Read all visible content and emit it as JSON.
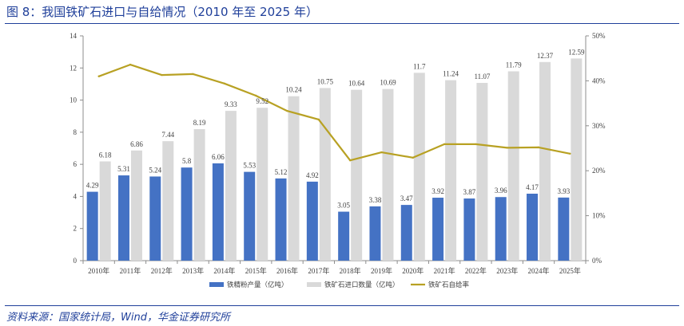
{
  "figure": {
    "title": "图 8：我国铁矿石进口与自给情况（2010 年至 2025 年）",
    "source": "资料来源：国家统计局，Wind，华金证券研究所"
  },
  "chart_data": {
    "type": "bar",
    "categories": [
      "2010年",
      "2011年",
      "2012年",
      "2013年",
      "2014年",
      "2015年",
      "2016年",
      "2017年",
      "2018年",
      "2019年",
      "2020年",
      "2021年",
      "2022年",
      "2023年",
      "2024年",
      "2025年"
    ],
    "series": [
      {
        "name": "铁精粉产量（亿吨）",
        "type": "bar",
        "axis": "left",
        "color": "#4472c4",
        "values": [
          4.29,
          5.31,
          5.24,
          5.8,
          6.06,
          5.53,
          5.12,
          4.92,
          3.05,
          3.38,
          3.47,
          3.92,
          3.87,
          3.96,
          4.17,
          3.93
        ]
      },
      {
        "name": "铁矿石进口数量（亿吨）",
        "type": "bar",
        "axis": "left",
        "color": "#d9d9d9",
        "values": [
          6.18,
          6.86,
          7.44,
          8.19,
          9.33,
          9.52,
          10.24,
          10.75,
          10.64,
          10.69,
          11.7,
          11.24,
          11.07,
          11.79,
          12.37,
          12.59
        ]
      },
      {
        "name": "铁矿石自给率",
        "type": "line",
        "axis": "right",
        "color": "#b8a123",
        "values": [
          41.0,
          43.6,
          41.3,
          41.5,
          39.4,
          36.7,
          33.3,
          31.4,
          22.3,
          24.1,
          22.9,
          25.9,
          25.9,
          25.1,
          25.2,
          23.8
        ]
      }
    ],
    "yAxisLeft": {
      "min": 0,
      "max": 14,
      "ticks": [
        "0",
        "2",
        "4",
        "6",
        "8",
        "10",
        "12",
        "14"
      ]
    },
    "yAxisRight": {
      "min": 0,
      "max": 50,
      "ticks": [
        "0%",
        "10%",
        "20%",
        "30%",
        "40%",
        "50%"
      ]
    },
    "grid": false,
    "legend": "bottom"
  }
}
